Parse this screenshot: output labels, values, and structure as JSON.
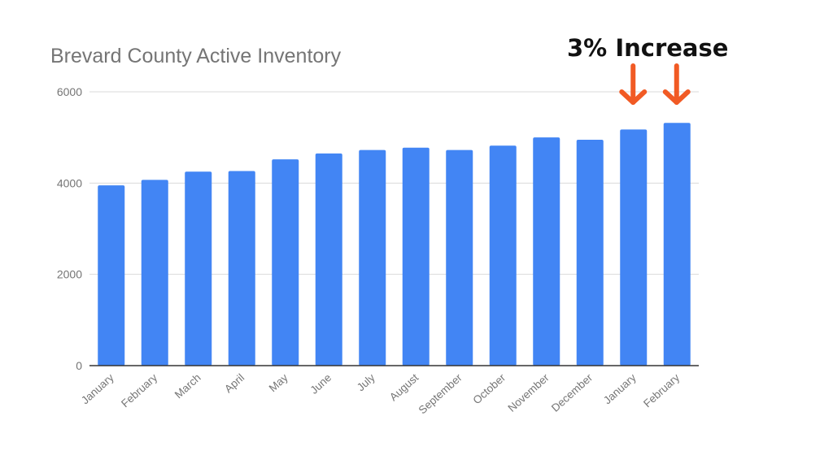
{
  "chart_data": {
    "type": "bar",
    "title": "Brevard County Active Inventory",
    "xlabel": "",
    "ylabel": "",
    "ylim": [
      0,
      6000
    ],
    "yticks": [
      0,
      2000,
      4000,
      6000
    ],
    "grid": true,
    "legend": null,
    "bar_color": "#4285F4",
    "categories": [
      "January",
      "February",
      "March",
      "April",
      "May",
      "June",
      "July",
      "August",
      "September",
      "October",
      "November",
      "December",
      "January",
      "February"
    ],
    "values": [
      3950,
      4070,
      4250,
      4265,
      4520,
      4650,
      4725,
      4775,
      4725,
      4820,
      5000,
      4950,
      5175,
      5320
    ],
    "annotations": [
      {
        "text": "3% Increase",
        "target_indices": [
          12,
          13
        ],
        "arrow_color": "#F15A24"
      }
    ]
  },
  "header": {
    "title": "Brevard County Active Inventory",
    "annotation": "3% Increase"
  }
}
